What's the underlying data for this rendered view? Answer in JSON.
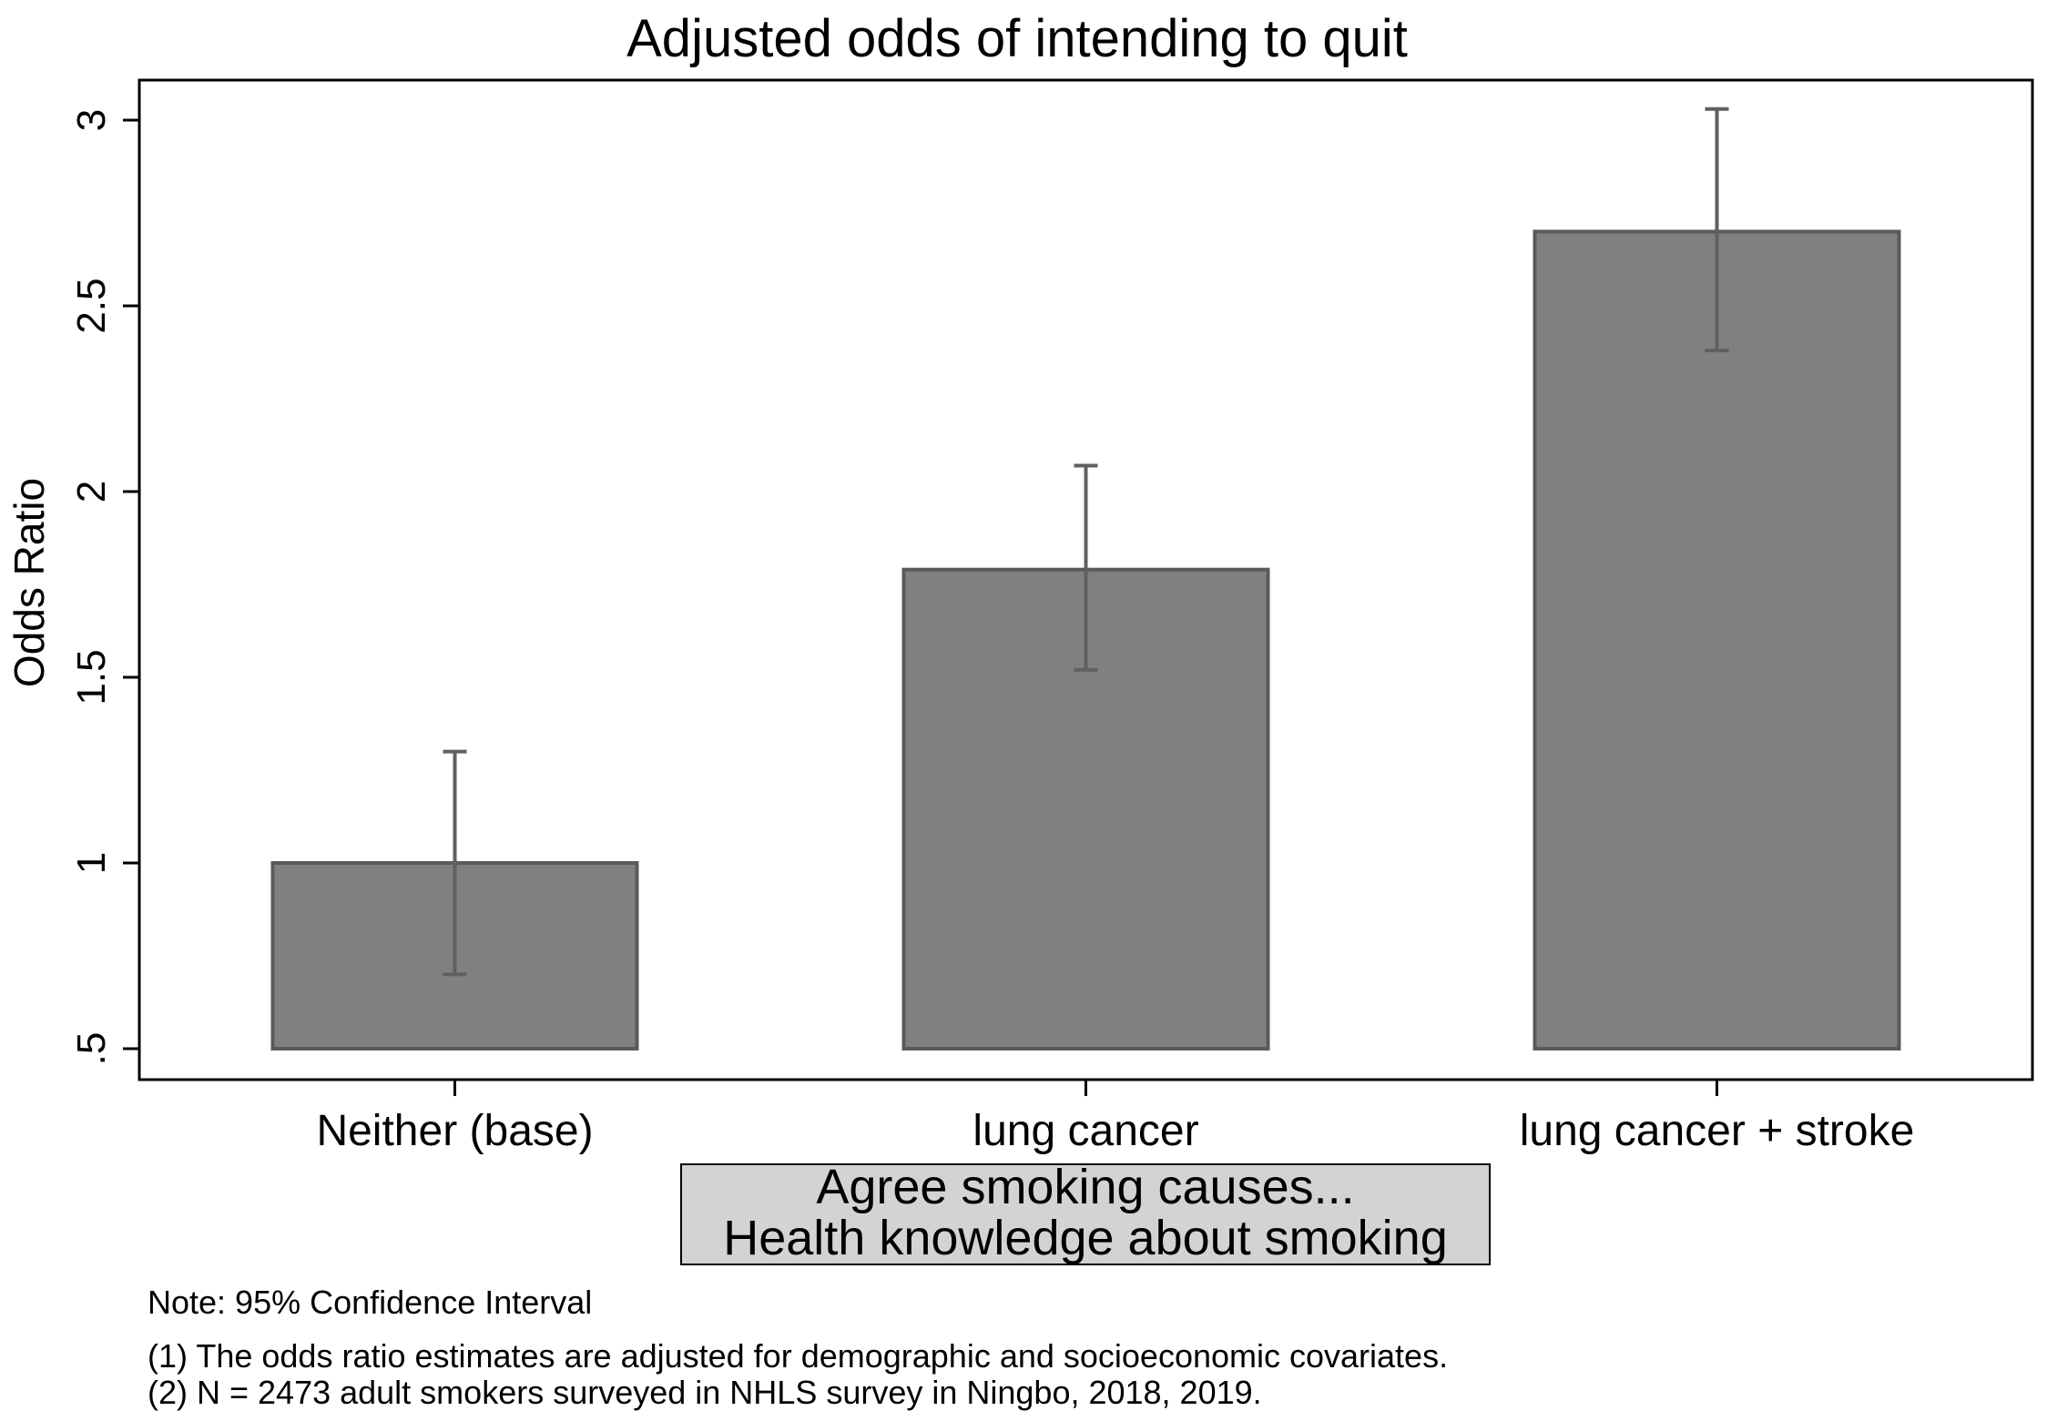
{
  "chart_data": {
    "type": "bar",
    "title": "Adjusted odds of intending to quit",
    "ylabel": "Odds Ratio",
    "ylim": [
      0.5,
      3.0
    ],
    "yticks": [
      0.5,
      1,
      1.5,
      2,
      2.5,
      3
    ],
    "ytick_labels": [
      ".5",
      "1",
      "1.5",
      "2",
      "2.5",
      "3"
    ],
    "categories": [
      "Neither (base)",
      "lung cancer",
      "lung cancer + stroke"
    ],
    "values": [
      1.0,
      1.79,
      2.7
    ],
    "ci_low": [
      0.7,
      1.52,
      2.38
    ],
    "ci_high": [
      1.3,
      2.07,
      3.03
    ],
    "bar_color": "#808080",
    "errorbar_color": "#606060",
    "grid": false,
    "xlabel_box": {
      "line1": "Agree smoking causes...",
      "line2": "Health knowledge about smoking",
      "fill": "#d3d3d3"
    },
    "notes": [
      "Note: 95% Confidence Interval",
      "(1) The odds ratio estimates are adjusted for demographic and socioeconomic covariates.",
      "(2) N = 2473 adult smokers surveyed in NHLS survey in Ningbo, 2018, 2019."
    ]
  }
}
